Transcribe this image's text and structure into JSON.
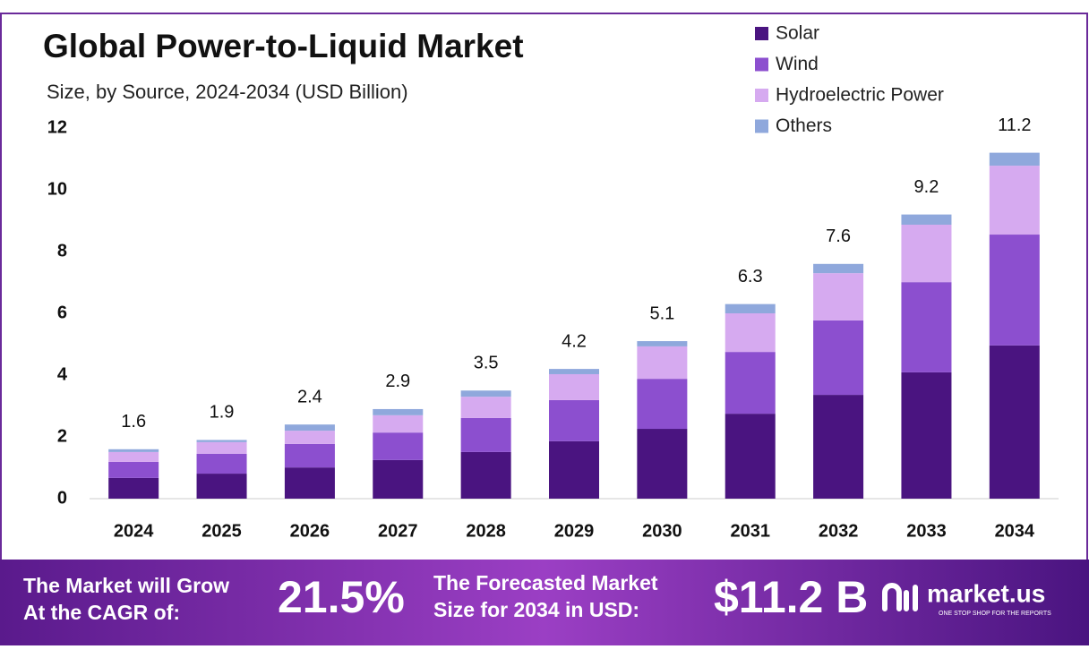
{
  "chart_data": {
    "type": "stacked-bar",
    "title": "Global Power-to-Liquid Market",
    "subtitle": "Size, by Source, 2024-2034 (USD Billion)",
    "categories": [
      "2024",
      "2025",
      "2026",
      "2027",
      "2028",
      "2029",
      "2030",
      "2031",
      "2032",
      "2033",
      "2034"
    ],
    "series": [
      {
        "name": "Solar",
        "color": "#4a1480",
        "values": [
          0.67,
          0.81,
          1.01,
          1.25,
          1.51,
          1.86,
          2.26,
          2.75,
          3.36,
          4.09,
          4.96
        ]
      },
      {
        "name": "Wind",
        "color": "#8c4fcf",
        "values": [
          0.52,
          0.64,
          0.76,
          0.89,
          1.1,
          1.33,
          1.62,
          2.0,
          2.41,
          2.92,
          3.59
        ]
      },
      {
        "name": "Hydroelectric Power",
        "color": "#d6aaf0",
        "values": [
          0.32,
          0.38,
          0.43,
          0.56,
          0.69,
          0.84,
          1.05,
          1.25,
          1.53,
          1.86,
          2.23
        ]
      },
      {
        "name": "Others",
        "color": "#8fa8dc",
        "values": [
          0.09,
          0.07,
          0.2,
          0.2,
          0.2,
          0.17,
          0.17,
          0.3,
          0.3,
          0.33,
          0.42
        ]
      }
    ],
    "totals": [
      1.6,
      1.9,
      2.4,
      2.9,
      3.5,
      4.2,
      5.1,
      6.3,
      7.6,
      9.2,
      11.2
    ],
    "ylim": [
      0,
      12
    ],
    "yticks": [
      0,
      2,
      4,
      6,
      8,
      10,
      12
    ],
    "grid": false,
    "legend": "top-right"
  },
  "footer": {
    "cagr_text": [
      "The Market will Grow",
      "At the CAGR of:"
    ],
    "cagr_value": "21.5%",
    "forecast_text": [
      "The Forecasted Market",
      "Size for 2034 in USD:"
    ],
    "forecast_value": "$11.2 B",
    "brand": "market.us",
    "tagline": "ONE STOP SHOP FOR THE REPORTS"
  }
}
